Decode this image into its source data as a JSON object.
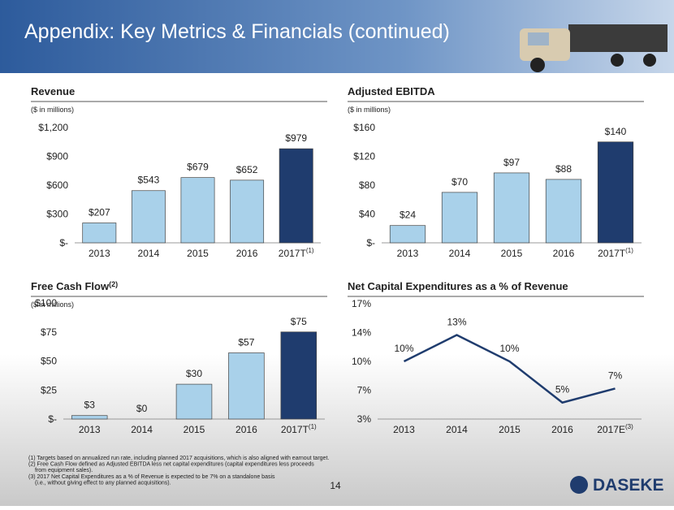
{
  "header": {
    "title": "Appendix: Key Metrics & Financials (continued)"
  },
  "chart_data": [
    {
      "type": "bar",
      "title": "Revenue",
      "subtitle": "($ in millions)",
      "categories": [
        "2013",
        "2014",
        "2015",
        "2016",
        "2017T"
      ],
      "category_notes": [
        null,
        null,
        null,
        null,
        "(1)"
      ],
      "values": [
        207,
        543,
        679,
        652,
        979
      ],
      "value_labels": [
        "$207",
        "$543",
        "$679",
        "$652",
        "$979"
      ],
      "colors": [
        "#a9d1ea",
        "#a9d1ea",
        "#a9d1ea",
        "#a9d1ea",
        "#1f3c6e"
      ],
      "ylim": [
        0,
        1200
      ],
      "yticks": [
        {
          "value": 0,
          "label": "$-"
        },
        {
          "value": 300,
          "label": "$300"
        },
        {
          "value": 600,
          "label": "$600"
        },
        {
          "value": 900,
          "label": "$900"
        },
        {
          "value": 1200,
          "label": "$1,200"
        }
      ]
    },
    {
      "type": "bar",
      "title": "Adjusted EBITDA",
      "subtitle": "($ in millions)",
      "categories": [
        "2013",
        "2014",
        "2015",
        "2016",
        "2017T"
      ],
      "category_notes": [
        null,
        null,
        null,
        null,
        "(1)"
      ],
      "values": [
        24,
        70,
        97,
        88,
        140
      ],
      "value_labels": [
        "$24",
        "$70",
        "$97",
        "$88",
        "$140"
      ],
      "colors": [
        "#a9d1ea",
        "#a9d1ea",
        "#a9d1ea",
        "#a9d1ea",
        "#1f3c6e"
      ],
      "ylim": [
        0,
        160
      ],
      "yticks": [
        {
          "value": 0,
          "label": "$-"
        },
        {
          "value": 40,
          "label": "$40"
        },
        {
          "value": 80,
          "label": "$80"
        },
        {
          "value": 120,
          "label": "$120"
        },
        {
          "value": 160,
          "label": "$160"
        }
      ]
    },
    {
      "type": "bar",
      "title": "Free Cash Flow",
      "title_note": "(2)",
      "subtitle": "($ in millions)",
      "categories": [
        "2013",
        "2014",
        "2015",
        "2016",
        "2017T"
      ],
      "category_notes": [
        null,
        null,
        null,
        null,
        "(1)"
      ],
      "values": [
        3,
        0,
        30,
        57,
        75
      ],
      "value_labels": [
        "$3",
        "$0",
        "$30",
        "$57",
        "$75"
      ],
      "colors": [
        "#a9d1ea",
        "#a9d1ea",
        "#a9d1ea",
        "#a9d1ea",
        "#1f3c6e"
      ],
      "ylim": [
        0,
        100
      ],
      "yticks": [
        {
          "value": 0,
          "label": "$-"
        },
        {
          "value": 25,
          "label": "$25"
        },
        {
          "value": 50,
          "label": "$50"
        },
        {
          "value": 75,
          "label": "$75"
        },
        {
          "value": 100,
          "label": "$100"
        }
      ]
    },
    {
      "type": "line",
      "title": "Net Capital Expenditures as a % of Revenue",
      "categories": [
        "2013",
        "2014",
        "2015",
        "2016",
        "2017E"
      ],
      "category_notes": [
        null,
        null,
        null,
        null,
        "(3)"
      ],
      "values": [
        10,
        13.2,
        10,
        5,
        6.7
      ],
      "value_labels": [
        "10%",
        "13%",
        "10%",
        "5%",
        "7%"
      ],
      "color": "#1f3c6e",
      "ylim": [
        3,
        17
      ],
      "yticks": [
        {
          "value": 3,
          "label": "3%"
        },
        {
          "value": 6.5,
          "label": "7%"
        },
        {
          "value": 10,
          "label": "10%"
        },
        {
          "value": 13.5,
          "label": "14%"
        },
        {
          "value": 17,
          "label": "17%"
        }
      ]
    }
  ],
  "footnotes": [
    "(1) Targets based on annualized run rate, including planned 2017 acquisitions, which is also aligned with earnout target.",
    "(2) Free Cash Flow defined as Adjusted EBITDA less net capital expenditures (capital expenditures less proceeds",
    "from equipment sales).",
    "(3) 2017 Net Capital Expenditures as a % of Revenue is expected to be 7% on a standalone basis",
    "(i.e., without giving effect to any planned acquisitions)."
  ],
  "page_number": 14,
  "logo": "DASEKE"
}
